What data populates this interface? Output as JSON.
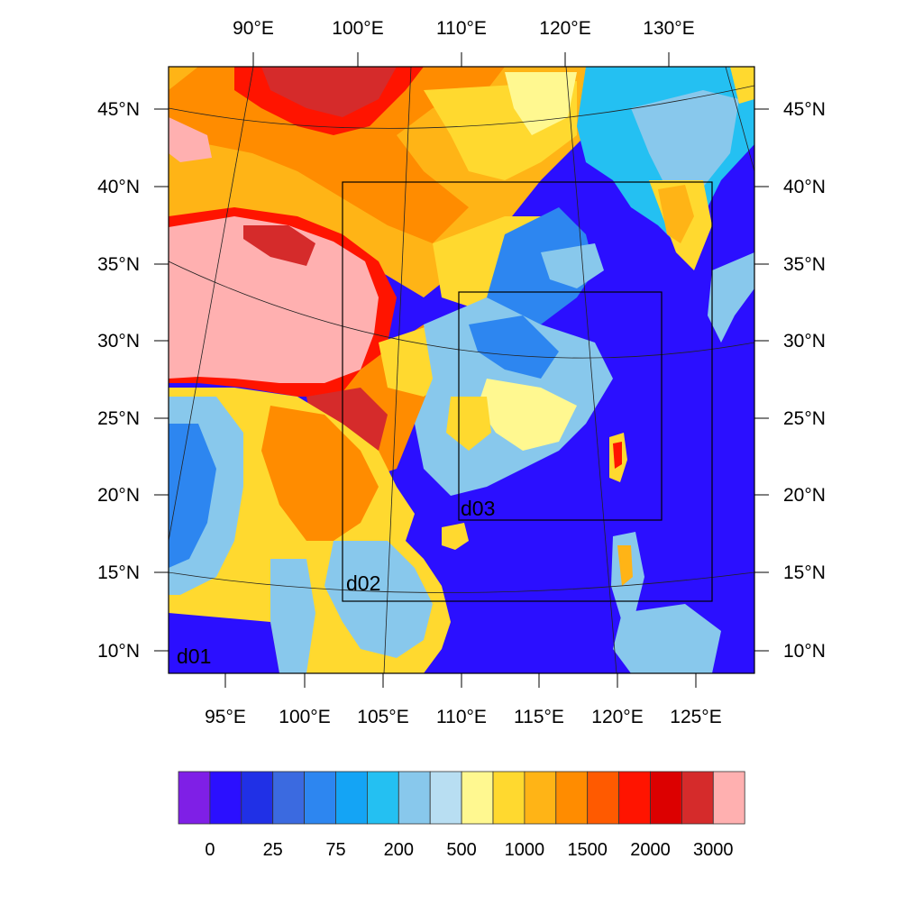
{
  "map": {
    "top_lon_labels": [
      "90°E",
      "100°E",
      "110°E",
      "120°E",
      "130°E"
    ],
    "bottom_lon_labels": [
      "95°E",
      "100°E",
      "105°E",
      "110°E",
      "115°E",
      "120°E",
      "125°E"
    ],
    "lat_labels": [
      "45°N",
      "40°N",
      "35°N",
      "30°N",
      "25°N",
      "20°N",
      "15°N",
      "10°N"
    ],
    "domains": [
      {
        "label": "d01"
      },
      {
        "label": "d02"
      },
      {
        "label": "d03"
      }
    ]
  },
  "colorbar": {
    "colors": [
      "#7f1fe6",
      "#2b0fff",
      "#2030e6",
      "#3b6ae0",
      "#2d86f0",
      "#14a4f5",
      "#24c0f2",
      "#88c8ec",
      "#b8def2",
      "#fff890",
      "#ffd92f",
      "#ffb416",
      "#ff8c00",
      "#ff5a00",
      "#ff1400",
      "#dc0000",
      "#d52b2b",
      "#ffb0b0"
    ],
    "labels": [
      "0",
      "25",
      "75",
      "200",
      "500",
      "1000",
      "1500",
      "2000",
      "3000"
    ]
  }
}
